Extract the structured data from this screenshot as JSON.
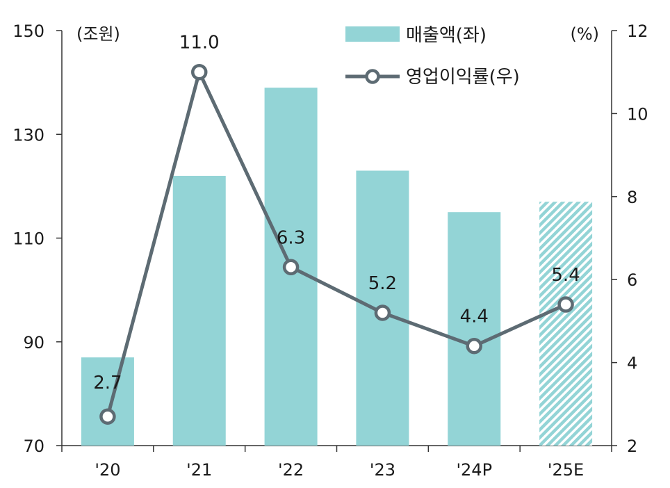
{
  "chart_data": {
    "type": "bar",
    "categories": [
      "'20",
      "'21",
      "'22",
      "'23",
      "'24P",
      "'25E"
    ],
    "series": [
      {
        "name": "매출액(좌)",
        "type": "bar",
        "axis": "left",
        "values": [
          87,
          122,
          139,
          123,
          115,
          117
        ],
        "estimated": [
          false,
          false,
          false,
          false,
          false,
          true
        ]
      },
      {
        "name": "영업이익률(우)",
        "type": "line",
        "axis": "right",
        "values": [
          2.7,
          11.0,
          6.3,
          5.2,
          4.4,
          5.4
        ],
        "labels": [
          "2.7",
          "11.0",
          "6.3",
          "5.2",
          "4.4",
          "5.4"
        ]
      }
    ],
    "left_axis": {
      "unit_label": "(조원)",
      "ylim": [
        70,
        150
      ],
      "ticks": [
        70,
        90,
        110,
        130,
        150
      ],
      "tick_labels": [
        "70",
        "90",
        "110",
        "130",
        "150"
      ]
    },
    "right_axis": {
      "unit_label": "(%)",
      "ylim": [
        2,
        12
      ],
      "ticks": [
        2,
        4,
        6,
        8,
        10,
        12
      ],
      "tick_labels": [
        "2",
        "4",
        "6",
        "8",
        "10",
        "12"
      ]
    },
    "legend_position": "top-right",
    "grid": false,
    "colors": {
      "bar": "#93d4d6",
      "bar_hatch": "#93d4d6",
      "line": "#5d6b73",
      "marker_fill": "#ffffff",
      "axis": "#333333"
    }
  }
}
